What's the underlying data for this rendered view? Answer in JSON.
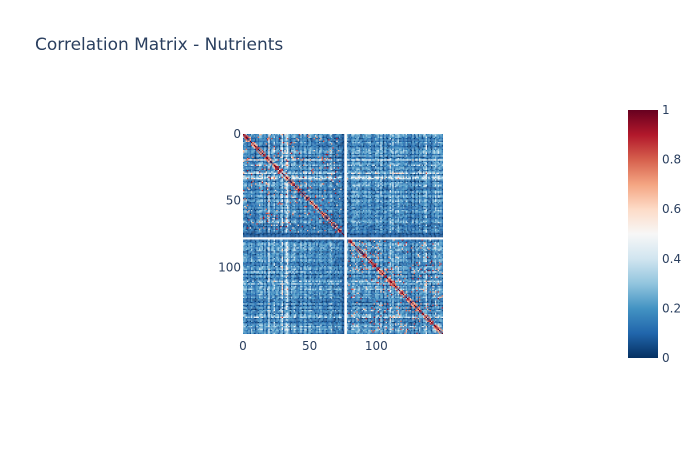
{
  "chart_data": {
    "type": "heatmap",
    "title": "Correlation Matrix - Nutrients",
    "n": 150,
    "x_ticks": [
      0,
      50,
      100
    ],
    "y_ticks": [
      0,
      50,
      100
    ],
    "y_reversed": true,
    "zlim": [
      0,
      1
    ],
    "colorscale": [
      "#053061",
      "#2166ac",
      "#4393c3",
      "#92c5de",
      "#d1e5f0",
      "#f7f7f7",
      "#fddbc7",
      "#f4a582",
      "#d6604d",
      "#b2182b",
      "#67001f"
    ],
    "colorbar": {
      "ticks": [
        0,
        0.2,
        0.4,
        0.6,
        0.8,
        1
      ],
      "tick_labels": [
        "0",
        "0.2",
        "0.4",
        "0.6",
        "0.8",
        "1"
      ],
      "placement": "right"
    },
    "legend": false
  }
}
